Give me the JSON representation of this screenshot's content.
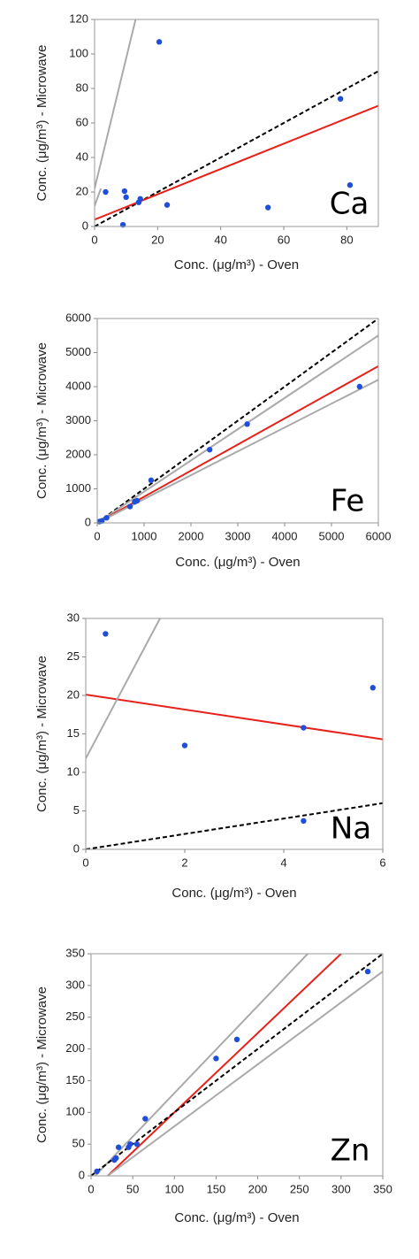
{
  "chart_data": [
    {
      "type": "scatter",
      "annotation": "Ca",
      "xlabel": "Conc. (μg/m³) - Oven",
      "ylabel": "Conc. (μg/m³) - Microwave",
      "xlim": [
        0,
        90
      ],
      "xticks": [
        0,
        20,
        40,
        60,
        80
      ],
      "ylim": [
        0,
        120
      ],
      "yticks": [
        0,
        20,
        40,
        60,
        80,
        100,
        120
      ],
      "series": [
        {
          "color": "#1f4fd8",
          "x": [
            3.5,
            9.5,
            10,
            9,
            14,
            14.5,
            20.5,
            23,
            55,
            78,
            81
          ],
          "y": [
            20,
            20.5,
            17,
            1,
            14,
            16,
            107,
            12.5,
            11,
            74,
            24
          ]
        }
      ],
      "lines": [
        {
          "color": "#000000",
          "dash": true,
          "x": [
            0,
            90
          ],
          "y": [
            0,
            90
          ]
        },
        {
          "color": "#e8201a",
          "dash": false,
          "x": [
            0,
            90
          ],
          "y": [
            4,
            70
          ]
        },
        {
          "color": "#aaaaaa",
          "dash": false,
          "x": [
            0,
            13
          ],
          "y": [
            22,
            120
          ]
        },
        {
          "color": "#aaaaaa",
          "dash": false,
          "x": [
            0,
            2
          ],
          "y": [
            12,
            22
          ]
        }
      ]
    },
    {
      "type": "scatter",
      "annotation": "Fe",
      "xlabel": "Conc. (μg/m³) - Oven",
      "ylabel": "Conc. (μg/m³) - Microwave",
      "xlim": [
        0,
        6000
      ],
      "xticks": [
        0,
        1000,
        2000,
        3000,
        4000,
        5000,
        6000
      ],
      "ylim": [
        0,
        6000
      ],
      "yticks": [
        0,
        1000,
        2000,
        3000,
        4000,
        5000,
        6000
      ],
      "series": [
        {
          "color": "#1f4fd8",
          "x": [
            50,
            100,
            200,
            700,
            800,
            850,
            1150,
            2400,
            3200,
            5600
          ],
          "y": [
            40,
            60,
            150,
            480,
            620,
            650,
            1250,
            2150,
            2900,
            4000
          ]
        }
      ],
      "lines": [
        {
          "color": "#000000",
          "dash": true,
          "x": [
            0,
            6000
          ],
          "y": [
            0,
            6000
          ]
        },
        {
          "color": "#aaaaaa",
          "dash": false,
          "x": [
            0,
            6000
          ],
          "y": [
            0,
            5500
          ]
        },
        {
          "color": "#e8201a",
          "dash": false,
          "x": [
            0,
            6000
          ],
          "y": [
            0,
            4600
          ]
        },
        {
          "color": "#aaaaaa",
          "dash": false,
          "x": [
            0,
            6000
          ],
          "y": [
            0,
            4200
          ]
        }
      ]
    },
    {
      "type": "scatter",
      "annotation": "Na",
      "xlabel": "Conc. (μg/m³) - Oven",
      "ylabel": "Conc. (μg/m³) - Microwave",
      "xlim": [
        0,
        6
      ],
      "xticks": [
        0,
        2,
        4,
        6
      ],
      "ylim": [
        0,
        30
      ],
      "yticks": [
        0,
        5,
        10,
        15,
        20,
        25,
        30
      ],
      "series": [
        {
          "color": "#1f4fd8",
          "x": [
            0.4,
            2,
            4.4,
            4.4,
            5.8
          ],
          "y": [
            28,
            13.5,
            15.8,
            3.7,
            21
          ]
        }
      ],
      "lines": [
        {
          "color": "#000000",
          "dash": true,
          "x": [
            0,
            6
          ],
          "y": [
            0,
            6
          ]
        },
        {
          "color": "#e8201a",
          "dash": false,
          "x": [
            0,
            6
          ],
          "y": [
            20.1,
            14.3
          ]
        },
        {
          "color": "#aaaaaa",
          "dash": false,
          "x": [
            0,
            1.5
          ],
          "y": [
            11.8,
            30
          ]
        }
      ]
    },
    {
      "type": "scatter",
      "annotation": "Zn",
      "xlabel": "Conc. (μg/m³) - Oven",
      "ylabel": "Conc. (μg/m³) - Microwave",
      "xlim": [
        0,
        350
      ],
      "xticks": [
        0,
        50,
        100,
        150,
        200,
        250,
        300,
        350
      ],
      "ylim": [
        0,
        350
      ],
      "yticks": [
        0,
        50,
        100,
        150,
        200,
        250,
        300,
        350
      ],
      "series": [
        {
          "color": "#1f4fd8",
          "x": [
            7,
            28,
            30,
            33,
            45,
            47,
            55,
            65,
            150,
            175,
            332
          ],
          "y": [
            7,
            25,
            28,
            45,
            45,
            50,
            50,
            90,
            185,
            215,
            322
          ]
        }
      ],
      "lines": [
        {
          "color": "#aaaaaa",
          "dash": false,
          "x": [
            5,
            260
          ],
          "y": [
            0,
            350
          ]
        },
        {
          "color": "#e8201a",
          "dash": false,
          "x": [
            20,
            300
          ],
          "y": [
            0,
            350
          ]
        },
        {
          "color": "#000000",
          "dash": true,
          "x": [
            0,
            350
          ],
          "y": [
            0,
            350
          ]
        },
        {
          "color": "#aaaaaa",
          "dash": false,
          "x": [
            20,
            350
          ],
          "y": [
            0,
            322
          ]
        }
      ]
    }
  ]
}
